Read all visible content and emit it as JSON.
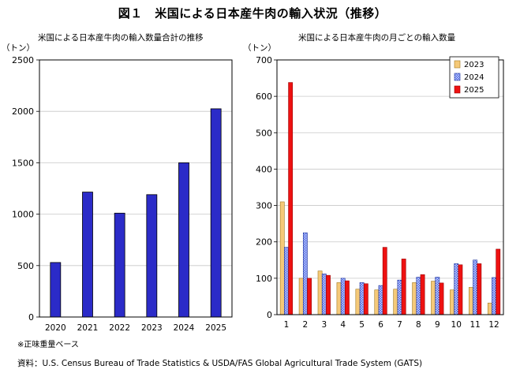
{
  "title": "図１　米国による日本産牛肉の輸入状況（推移）",
  "footnote": "※正味重量ベース",
  "source": "資料：U.S. Census Bureau of Trade Statistics & USDA/FAS Global Agricultural Trade System (GATS)",
  "chart_data": [
    {
      "type": "bar",
      "title": "米国による日本産牛肉の輸入数量合計の推移",
      "ylabel": "（トン）",
      "xlabel": "",
      "categories": [
        "2020",
        "2021",
        "2022",
        "2023",
        "2024",
        "2025"
      ],
      "values": [
        530,
        1215,
        1010,
        1190,
        1500,
        2025
      ],
      "ylim": [
        0,
        2500
      ],
      "yticks": [
        0,
        500,
        1000,
        1500,
        2000,
        2500
      ],
      "color": "#2b2bc8",
      "grid": true
    },
    {
      "type": "bar",
      "title": "米国による日本産牛肉の月ごとの輸入数量",
      "ylabel": "（トン）",
      "xlabel": "",
      "categories": [
        "1",
        "2",
        "3",
        "4",
        "5",
        "6",
        "7",
        "8",
        "9",
        "10",
        "11",
        "12"
      ],
      "ylim": [
        0,
        700
      ],
      "yticks": [
        0,
        100,
        200,
        300,
        400,
        500,
        600,
        700
      ],
      "grid": true,
      "legend_position": "top-right",
      "series": [
        {
          "name": "2023",
          "color": "#f5c978",
          "values": [
            310,
            100,
            120,
            88,
            70,
            68,
            70,
            88,
            92,
            68,
            75,
            32
          ]
        },
        {
          "name": "2024",
          "color": "#4a66e0",
          "values": [
            185,
            225,
            112,
            100,
            88,
            80,
            95,
            103,
            103,
            140,
            150,
            102
          ]
        },
        {
          "name": "2025",
          "color": "#ee1111",
          "values": [
            638,
            100,
            108,
            93,
            85,
            185,
            153,
            110,
            87,
            137,
            140,
            180
          ]
        }
      ]
    }
  ]
}
